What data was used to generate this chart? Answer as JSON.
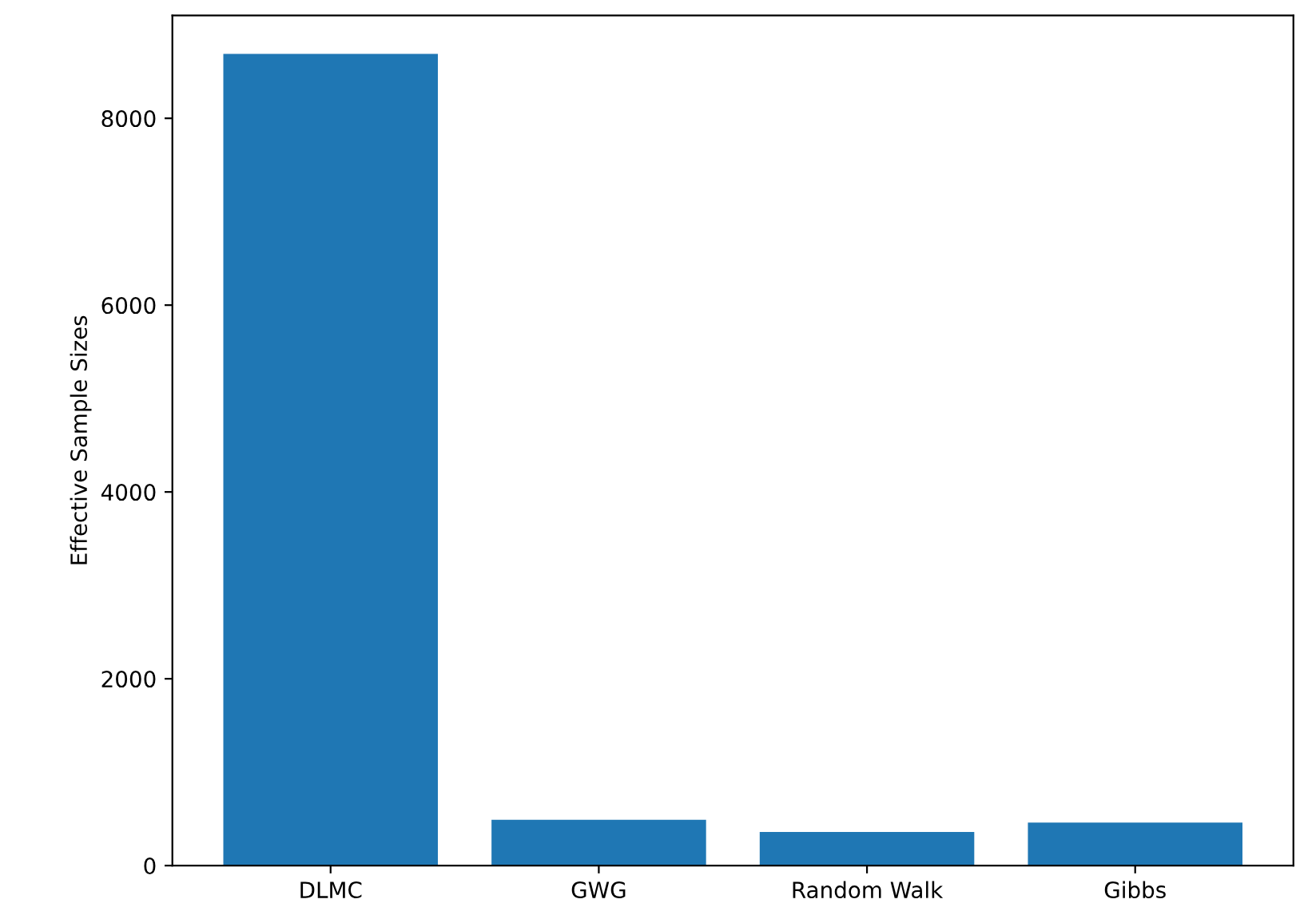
{
  "chart_data": {
    "type": "bar",
    "ylabel": "Effective Sample Sizes",
    "categories": [
      "DLMC",
      "GWG",
      "Random Walk",
      "Gibbs"
    ],
    "values": [
      8690,
      490,
      360,
      460
    ],
    "color": "#1f77b4",
    "ylim": [
      0,
      9100
    ],
    "yticks": [
      0,
      2000,
      4000,
      6000,
      8000
    ],
    "grid": false
  }
}
